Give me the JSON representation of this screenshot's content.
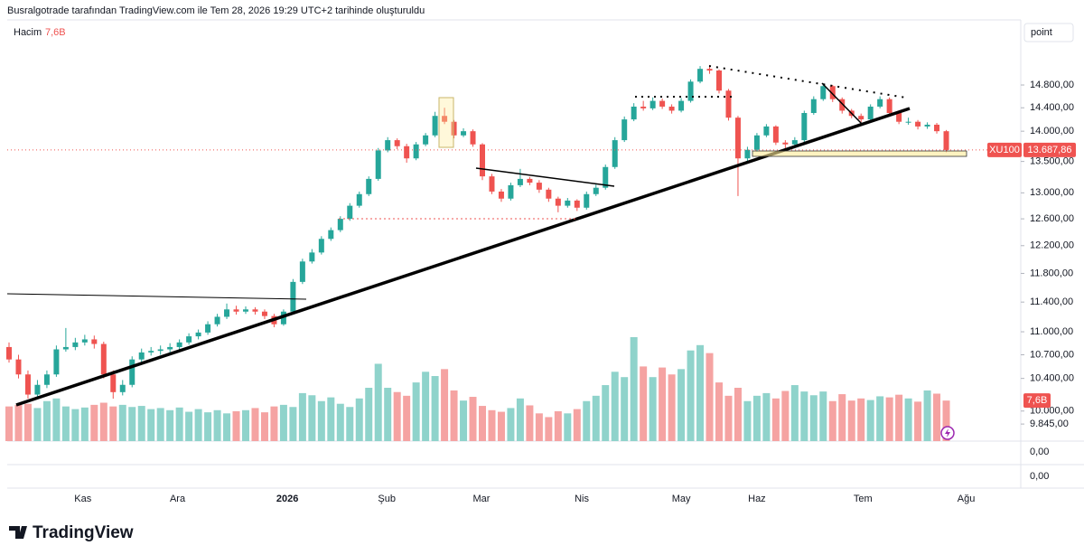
{
  "header": {
    "title": "Busralgotrade tarafından TradingView.com ile Tem 28, 2026 19:29 UTC+2 tarihinde oluşturuldu",
    "button": "point",
    "logo": "TradingView"
  },
  "chart_data": {
    "type": "candlestick",
    "symbol": "XU100",
    "volume_name": "Hacim",
    "volume_label": "7,6B",
    "last_price": {
      "value": 13687.86,
      "label": "13.687,86"
    },
    "log_scale": true,
    "grid": false,
    "up_color": "#26a69a",
    "down_color": "#ef5350",
    "volume_up_color": "#8fd3cb",
    "volume_down_color": "#f5a3a2",
    "ylim": [
      9645,
      15610
    ],
    "vlim": [
      0,
      20
    ],
    "yticks": [
      {
        "value": 14800,
        "label": "14.800,00"
      },
      {
        "value": 14400,
        "label": "14.400,00"
      },
      {
        "value": 14000,
        "label": "14.000,00"
      },
      {
        "value": 13500,
        "label": "13.500,00"
      },
      {
        "value": 13000,
        "label": "13.000,00"
      },
      {
        "value": 12600,
        "label": "12.600,00"
      },
      {
        "value": 12200,
        "label": "12.200,00"
      },
      {
        "value": 11800,
        "label": "11.800,00"
      },
      {
        "value": 11400,
        "label": "11.400,00"
      },
      {
        "value": 11000,
        "label": "11.000,00"
      },
      {
        "value": 10700,
        "label": "10.700,00"
      },
      {
        "value": 10400,
        "label": "10.400,00"
      },
      {
        "value": 10000,
        "label": "10.000,00"
      },
      {
        "value": 9845,
        "label": "9.845,00"
      }
    ],
    "pane_labels": [
      "0,00",
      "0,00"
    ],
    "xticks": [
      {
        "value": 7.8,
        "label": "Kas"
      },
      {
        "value": 17.8,
        "label": "Ara"
      },
      {
        "value": 29.4,
        "label": "2026",
        "bold": true
      },
      {
        "value": 39.9,
        "label": "Şub"
      },
      {
        "value": 49.9,
        "label": "Mar"
      },
      {
        "value": 60.5,
        "label": "Nis"
      },
      {
        "value": 71,
        "label": "May"
      },
      {
        "value": 79,
        "label": "Haz"
      },
      {
        "value": 90.2,
        "label": "Tem"
      },
      {
        "value": 101.1,
        "label": "Ağu"
      }
    ],
    "candles": [
      [
        10800,
        10860,
        10600,
        10640
      ],
      [
        10640,
        10700,
        10400,
        10450
      ],
      [
        10450,
        10500,
        10150,
        10200
      ],
      [
        10200,
        10380,
        10150,
        10320
      ],
      [
        10320,
        10500,
        10280,
        10450
      ],
      [
        10450,
        10820,
        10420,
        10770
      ],
      [
        10770,
        11050,
        10740,
        10800
      ],
      [
        10800,
        10920,
        10760,
        10860
      ],
      [
        10860,
        10960,
        10820,
        10900
      ],
      [
        10900,
        10950,
        10780,
        10840
      ],
      [
        10840,
        10870,
        10400,
        10450
      ],
      [
        10450,
        10500,
        10150,
        10230
      ],
      [
        10230,
        10380,
        10190,
        10320
      ],
      [
        10320,
        10680,
        10290,
        10640
      ],
      [
        10640,
        10780,
        10600,
        10730
      ],
      [
        10730,
        10800,
        10690,
        10750
      ],
      [
        10750,
        10820,
        10700,
        10770
      ],
      [
        10770,
        10850,
        10730,
        10800
      ],
      [
        10800,
        10900,
        10760,
        10860
      ],
      [
        10860,
        10980,
        10830,
        10940
      ],
      [
        10940,
        11030,
        10900,
        10990
      ],
      [
        10990,
        11140,
        10960,
        11100
      ],
      [
        11100,
        11240,
        11070,
        11200
      ],
      [
        11200,
        11380,
        11170,
        11300
      ],
      [
        11300,
        11350,
        11230,
        11270
      ],
      [
        11270,
        11340,
        11240,
        11300
      ],
      [
        11300,
        11330,
        11230,
        11270
      ],
      [
        11270,
        11300,
        11170,
        11210
      ],
      [
        11210,
        11240,
        11060,
        11100
      ],
      [
        11100,
        11300,
        11080,
        11270
      ],
      [
        11270,
        11720,
        11250,
        11680
      ],
      [
        11680,
        12010,
        11650,
        11970
      ],
      [
        11970,
        12150,
        11940,
        12100
      ],
      [
        12100,
        12340,
        12070,
        12300
      ],
      [
        12300,
        12470,
        12270,
        12430
      ],
      [
        12430,
        12640,
        12400,
        12600
      ],
      [
        12600,
        12840,
        12570,
        12800
      ],
      [
        12800,
        13020,
        12770,
        12980
      ],
      [
        12980,
        13260,
        12950,
        13220
      ],
      [
        13220,
        13720,
        13190,
        13680
      ],
      [
        13680,
        13900,
        13650,
        13850
      ],
      [
        13850,
        13880,
        13700,
        13750
      ],
      [
        13750,
        13790,
        13480,
        13550
      ],
      [
        13550,
        13820,
        13520,
        13780
      ],
      [
        13780,
        13970,
        13750,
        13930
      ],
      [
        13930,
        14330,
        13900,
        14260
      ],
      [
        14260,
        14400,
        14120,
        14160
      ],
      [
        14160,
        14190,
        13880,
        13930
      ],
      [
        13930,
        14050,
        13900,
        14000
      ],
      [
        14000,
        14030,
        13740,
        13780
      ],
      [
        13780,
        13800,
        13200,
        13260
      ],
      [
        13260,
        13300,
        12980,
        13020
      ],
      [
        13020,
        13060,
        12860,
        12910
      ],
      [
        12910,
        13160,
        12880,
        13120
      ],
      [
        13120,
        13380,
        13090,
        13220
      ],
      [
        13220,
        13250,
        13120,
        13160
      ],
      [
        13160,
        13200,
        13000,
        13050
      ],
      [
        13050,
        13080,
        12860,
        12910
      ],
      [
        12910,
        12940,
        12700,
        12800
      ],
      [
        12800,
        12920,
        12770,
        12880
      ],
      [
        12880,
        12900,
        12720,
        12770
      ],
      [
        12770,
        13020,
        12740,
        12980
      ],
      [
        12980,
        13130,
        12950,
        13080
      ],
      [
        13080,
        13450,
        13050,
        13410
      ],
      [
        13410,
        13900,
        13380,
        13850
      ],
      [
        13850,
        14250,
        13820,
        14200
      ],
      [
        14200,
        14480,
        14170,
        14420
      ],
      [
        14420,
        14520,
        14350,
        14390
      ],
      [
        14390,
        14580,
        14360,
        14520
      ],
      [
        14520,
        14560,
        14380,
        14420
      ],
      [
        14420,
        14460,
        14300,
        14350
      ],
      [
        14350,
        14570,
        14320,
        14520
      ],
      [
        14520,
        14900,
        14490,
        14860
      ],
      [
        14860,
        15140,
        14830,
        15090
      ],
      [
        15090,
        15160,
        15000,
        15060
      ],
      [
        15060,
        15080,
        14650,
        14700
      ],
      [
        14700,
        14730,
        14180,
        14230
      ],
      [
        14230,
        14260,
        12950,
        13550
      ],
      [
        13550,
        13740,
        13500,
        13690
      ],
      [
        13690,
        13970,
        13660,
        13930
      ],
      [
        13930,
        14120,
        13900,
        14080
      ],
      [
        14080,
        14100,
        13770,
        13810
      ],
      [
        13810,
        13850,
        13700,
        13780
      ],
      [
        13780,
        13900,
        13750,
        13850
      ],
      [
        13850,
        14350,
        13820,
        14310
      ],
      [
        14310,
        14600,
        14280,
        14550
      ],
      [
        14550,
        14830,
        14520,
        14780
      ],
      [
        14780,
        14800,
        14500,
        14550
      ],
      [
        14550,
        14580,
        14300,
        14350
      ],
      [
        14350,
        14380,
        14220,
        14260
      ],
      [
        14260,
        14300,
        14150,
        14200
      ],
      [
        14200,
        14460,
        14170,
        14420
      ],
      [
        14420,
        14600,
        14390,
        14550
      ],
      [
        14550,
        14580,
        14270,
        14310
      ],
      [
        14310,
        14340,
        14120,
        14160
      ],
      [
        14160,
        14230,
        14110,
        14160
      ],
      [
        14160,
        14190,
        14030,
        14080
      ],
      [
        14080,
        14150,
        14040,
        14110
      ],
      [
        14110,
        14140,
        13960,
        14000
      ],
      [
        14000,
        14020,
        13650,
        13687.86
      ]
    ],
    "volume": [
      6.5,
      6.8,
      7,
      6.2,
      7.5,
      8,
      6.5,
      6,
      6.3,
      6.8,
      7.2,
      6.5,
      6.8,
      6.4,
      6.6,
      6,
      6.2,
      5.8,
      6.3,
      5.5,
      6,
      5.4,
      5.8,
      5.2,
      5.6,
      5.8,
      6.2,
      5.4,
      6.5,
      6.8,
      6.4,
      9,
      8.6,
      7.5,
      8.2,
      7,
      6.4,
      8,
      10,
      14.5,
      10,
      9.2,
      8.5,
      11,
      13,
      12.2,
      13.5,
      9.5,
      7.6,
      8.3,
      6.6,
      5.8,
      5.5,
      6.2,
      8,
      6.7,
      5.2,
      4.5,
      5.6,
      5.2,
      6,
      7.5,
      8.5,
      10.5,
      13,
      12,
      19.5,
      14,
      12,
      13.8,
      12.5,
      13.5,
      17,
      18,
      16.5,
      11,
      8.5,
      10,
      7.5,
      8.5,
      9,
      8,
      9.4,
      10.5,
      9.3,
      8.6,
      9.3,
      7.5,
      8.8,
      7.6,
      8,
      7.7,
      8.4,
      8.2,
      8.7,
      8,
      7.4,
      9.5,
      8.9,
      7.6
    ]
  }
}
